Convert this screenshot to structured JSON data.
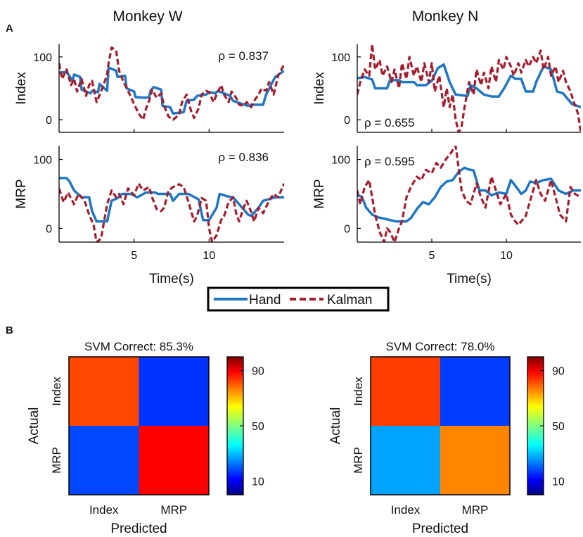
{
  "panels": {
    "a_label": "A",
    "b_label": "B"
  },
  "colors": {
    "hand": "#1f77c4",
    "kalman": "#a51d2d",
    "axis": "#000000"
  },
  "legend": {
    "hand_label": "Hand",
    "kalman_label": "Kalman"
  },
  "chart_data": [
    {
      "type": "line",
      "id": "w-index",
      "monkey_title": "Monkey W",
      "ylabel": "Index",
      "xlabel": "",
      "xlim": [
        0,
        15
      ],
      "ylim": [
        -20,
        120
      ],
      "yticks": [
        0,
        100
      ],
      "ytick_labels": [
        "0",
        "100"
      ],
      "xticks": [
        5,
        10
      ],
      "xtick_labels": [
        "",
        ""
      ],
      "annotation": "ρ = 0.837",
      "annotation_pos": "top-right",
      "series": [
        {
          "name": "Hand",
          "x": [
            0,
            0.5,
            0.9,
            1.0,
            1.4,
            1.5,
            2.1,
            2.2,
            2.6,
            2.7,
            3.2,
            3.3,
            3.8,
            3.9,
            4.4,
            4.5,
            5.0,
            5.1,
            5.7,
            6.0,
            6.1,
            6.3,
            6.8,
            6.9,
            7.4,
            7.6,
            8.3,
            8.5,
            9.0,
            9.2,
            9.8,
            10.0,
            10.4,
            10.6,
            11.0,
            11.4,
            11.6,
            12.6,
            12.8,
            13.6,
            13.8,
            14.4,
            15.0
          ],
          "y": [
            75,
            76,
            62,
            72,
            68,
            48,
            42,
            46,
            44,
            57,
            46,
            83,
            78,
            68,
            70,
            50,
            45,
            36,
            35,
            36,
            46,
            52,
            48,
            22,
            20,
            10,
            12,
            30,
            32,
            38,
            40,
            44,
            42,
            46,
            42,
            38,
            30,
            22,
            24,
            24,
            40,
            68,
            78
          ]
        },
        {
          "name": "Kalman",
          "x": [
            0,
            0.2,
            0.5,
            0.8,
            1.0,
            1.2,
            1.5,
            1.8,
            2.0,
            2.2,
            2.5,
            2.8,
            3.0,
            3.2,
            3.3,
            3.5,
            3.8,
            4.0,
            4.3,
            4.6,
            5.0,
            5.3,
            5.6,
            5.8,
            6.0,
            6.2,
            6.5,
            6.8,
            7.0,
            7.3,
            7.6,
            8.0,
            8.2,
            8.5,
            8.8,
            9.0,
            9.3,
            9.5,
            9.8,
            10.0,
            10.3,
            10.5,
            10.8,
            11.0,
            11.3,
            11.5,
            11.8,
            12.0,
            12.3,
            12.5,
            12.8,
            13.0,
            13.3,
            13.5,
            13.8,
            14.0,
            14.3,
            14.6,
            15.0
          ],
          "y": [
            90,
            65,
            80,
            55,
            65,
            45,
            65,
            38,
            55,
            62,
            28,
            45,
            58,
            72,
            90,
            115,
            110,
            78,
            60,
            46,
            25,
            10,
            0,
            18,
            30,
            48,
            35,
            42,
            22,
            5,
            0,
            8,
            28,
            40,
            14,
            3,
            18,
            40,
            46,
            44,
            28,
            40,
            55,
            40,
            28,
            45,
            35,
            24,
            22,
            28,
            20,
            30,
            40,
            50,
            46,
            60,
            40,
            70,
            88
          ]
        }
      ]
    },
    {
      "type": "line",
      "id": "w-mrp",
      "ylabel": "MRP",
      "xlabel": "Time(s)",
      "xlim": [
        0,
        15
      ],
      "ylim": [
        -20,
        120
      ],
      "yticks": [
        0,
        100
      ],
      "ytick_labels": [
        "0",
        "100"
      ],
      "xticks": [
        5,
        10
      ],
      "xtick_labels": [
        "5",
        "10"
      ],
      "annotation": "ρ = 0.836",
      "annotation_pos": "top-right",
      "series": [
        {
          "name": "Hand",
          "x": [
            0,
            0.5,
            0.7,
            1.0,
            1.5,
            2.0,
            2.2,
            2.5,
            3.0,
            3.2,
            3.5,
            3.9,
            4.2,
            4.8,
            5.2,
            5.8,
            6.4,
            6.6,
            7.4,
            7.6,
            8.0,
            8.6,
            8.8,
            9.3,
            9.6,
            10.0,
            10.5,
            10.7,
            11.3,
            11.6,
            12.6,
            12.8,
            13.3,
            13.6,
            14.4,
            15.0
          ],
          "y": [
            73,
            73,
            68,
            55,
            45,
            45,
            25,
            10,
            10,
            10,
            40,
            44,
            50,
            50,
            45,
            52,
            52,
            50,
            50,
            40,
            50,
            50,
            48,
            42,
            12,
            12,
            30,
            50,
            46,
            45,
            20,
            18,
            30,
            40,
            45,
            45
          ]
        },
        {
          "name": "Kalman",
          "x": [
            0,
            0.3,
            0.6,
            1.0,
            1.3,
            1.7,
            2.0,
            2.3,
            2.5,
            2.8,
            3.0,
            3.2,
            3.5,
            3.8,
            4.0,
            4.3,
            4.6,
            5.0,
            5.3,
            5.6,
            6.0,
            6.2,
            6.5,
            6.8,
            7.0,
            7.3,
            7.6,
            8.0,
            8.3,
            8.6,
            9.0,
            9.2,
            9.5,
            9.8,
            10.0,
            10.2,
            10.5,
            10.8,
            11.0,
            11.3,
            11.6,
            11.8,
            12.0,
            12.3,
            12.5,
            12.8,
            13.0,
            13.3,
            13.6,
            14.0,
            14.3,
            14.6,
            15.0
          ],
          "y": [
            58,
            38,
            52,
            35,
            50,
            40,
            20,
            5,
            -20,
            -15,
            10,
            35,
            55,
            45,
            50,
            35,
            58,
            48,
            65,
            55,
            60,
            45,
            28,
            25,
            30,
            55,
            60,
            64,
            60,
            40,
            10,
            18,
            44,
            40,
            0,
            -20,
            -10,
            12,
            18,
            38,
            45,
            22,
            10,
            30,
            40,
            24,
            10,
            30,
            22,
            40,
            50,
            45,
            65
          ]
        }
      ]
    },
    {
      "type": "line",
      "id": "n-index",
      "monkey_title": "Monkey N",
      "ylabel": "Index",
      "xlabel": "",
      "xlim": [
        0,
        15
      ],
      "ylim": [
        -20,
        120
      ],
      "yticks": [
        0,
        100
      ],
      "ytick_labels": [
        "0",
        "100"
      ],
      "xticks": [
        5,
        10
      ],
      "xtick_labels": [
        "",
        ""
      ],
      "annotation": "ρ = 0.655",
      "annotation_pos": "bottom-left",
      "series": [
        {
          "name": "Hand",
          "x": [
            0,
            0.5,
            1.0,
            1.2,
            2.0,
            2.2,
            2.8,
            3.0,
            3.8,
            4.0,
            4.6,
            5.0,
            5.4,
            5.8,
            6.2,
            6.6,
            7.4,
            7.6,
            8.0,
            8.5,
            9.0,
            9.5,
            9.9,
            10.3,
            10.6,
            11.0,
            11.3,
            11.8,
            12.0,
            12.5,
            13.0,
            13.4,
            13.8,
            14.4,
            15.0
          ],
          "y": [
            66,
            68,
            64,
            50,
            50,
            63,
            63,
            60,
            60,
            55,
            55,
            62,
            82,
            88,
            60,
            40,
            38,
            55,
            50,
            40,
            37,
            37,
            52,
            70,
            65,
            65,
            45,
            45,
            60,
            85,
            80,
            45,
            42,
            25,
            20
          ]
        },
        {
          "name": "Kalman",
          "x": [
            0,
            0.2,
            0.5,
            0.8,
            1.0,
            1.2,
            1.5,
            1.7,
            2.0,
            2.3,
            2.5,
            2.8,
            3.0,
            3.3,
            3.5,
            3.8,
            4.0,
            4.3,
            4.5,
            4.8,
            5.0,
            5.2,
            5.5,
            5.8,
            6.0,
            6.2,
            6.4,
            6.6,
            6.8,
            7.0,
            7.2,
            7.5,
            7.8,
            8.0,
            8.3,
            8.5,
            8.8,
            9.0,
            9.3,
            9.5,
            9.8,
            10.0,
            10.3,
            10.5,
            10.8,
            11.0,
            11.3,
            11.5,
            11.8,
            12.0,
            12.3,
            12.5,
            12.8,
            13.0,
            13.3,
            13.5,
            13.8,
            14.0,
            14.3,
            14.5,
            14.8,
            15.0
          ],
          "y": [
            40,
            60,
            80,
            70,
            120,
            80,
            95,
            70,
            85,
            60,
            80,
            50,
            90,
            65,
            100,
            70,
            85,
            60,
            90,
            60,
            90,
            45,
            70,
            20,
            50,
            20,
            40,
            0,
            -20,
            -10,
            20,
            60,
            40,
            80,
            55,
            75,
            50,
            85,
            60,
            95,
            80,
            100,
            85,
            70,
            90,
            75,
            95,
            85,
            100,
            90,
            110,
            80,
            100,
            70,
            85,
            60,
            78,
            60,
            45,
            30,
            10,
            -20
          ]
        }
      ]
    },
    {
      "type": "line",
      "id": "n-mrp",
      "ylabel": "MRP",
      "xlabel": "Time(s)",
      "xlim": [
        0,
        15
      ],
      "ylim": [
        -20,
        120
      ],
      "yticks": [
        0,
        100
      ],
      "ytick_labels": [
        "0",
        "100"
      ],
      "xticks": [
        5,
        10
      ],
      "xtick_labels": [
        "5",
        "10"
      ],
      "annotation": "ρ = 0.595",
      "annotation_pos": "top-left",
      "series": [
        {
          "name": "Hand",
          "x": [
            0,
            0.3,
            0.6,
            1.0,
            1.4,
            1.8,
            2.2,
            2.6,
            3.0,
            3.3,
            3.6,
            4.0,
            4.4,
            4.8,
            5.2,
            5.6,
            6.0,
            6.4,
            6.8,
            7.2,
            7.4,
            7.8,
            8.2,
            8.6,
            9.0,
            9.5,
            10.0,
            10.3,
            10.6,
            11.0,
            11.3,
            11.6,
            12.0,
            12.5,
            13.0,
            13.5,
            14.0,
            14.5,
            15.0
          ],
          "y": [
            48,
            46,
            30,
            20,
            16,
            14,
            12,
            10,
            10,
            10,
            15,
            28,
            38,
            35,
            45,
            60,
            68,
            70,
            82,
            88,
            86,
            84,
            55,
            55,
            48,
            52,
            50,
            70,
            62,
            50,
            55,
            68,
            66,
            70,
            72,
            55,
            50,
            55,
            55
          ]
        },
        {
          "name": "Kalman",
          "x": [
            0,
            0.2,
            0.5,
            0.8,
            1.0,
            1.2,
            1.5,
            1.8,
            2.0,
            2.2,
            2.5,
            2.8,
            3.0,
            3.3,
            3.6,
            4.0,
            4.3,
            4.6,
            5.0,
            5.3,
            5.6,
            6.0,
            6.3,
            6.6,
            7.0,
            7.3,
            7.6,
            8.0,
            8.3,
            8.6,
            9.0,
            9.3,
            9.6,
            10.0,
            10.3,
            10.6,
            10.8,
            11.0,
            11.3,
            11.6,
            12.0,
            12.3,
            12.6,
            13.0,
            13.3,
            13.6,
            14.0,
            14.3,
            14.6,
            15.0
          ],
          "y": [
            55,
            35,
            60,
            70,
            45,
            20,
            -5,
            -20,
            0,
            -5,
            -20,
            0,
            10,
            45,
            60,
            75,
            70,
            85,
            80,
            95,
            88,
            102,
            110,
            120,
            55,
            40,
            35,
            65,
            45,
            30,
            75,
            55,
            35,
            50,
            20,
            10,
            5,
            10,
            18,
            40,
            70,
            50,
            40,
            70,
            45,
            20,
            10,
            60,
            50,
            45
          ]
        }
      ]
    },
    {
      "type": "heatmap",
      "id": "w-confusion",
      "title": "SVM Correct: 85.3%",
      "xlabel": "Predicted",
      "ylabel": "Actual",
      "x_categories": [
        "Index",
        "MRP"
      ],
      "y_categories": [
        "Index",
        "MRP"
      ],
      "values": [
        [
          82,
          16
        ],
        [
          18,
          89
        ]
      ],
      "clim": [
        0,
        100
      ],
      "colorbar_ticks": [
        10,
        50,
        90
      ],
      "colorbar_tick_labels": [
        "10",
        "50",
        "90"
      ]
    },
    {
      "type": "heatmap",
      "id": "n-confusion",
      "title": "SVM Correct: 78.0%",
      "xlabel": "Predicted",
      "ylabel": "Actual",
      "x_categories": [
        "Index",
        "MRP"
      ],
      "y_categories": [
        "Index",
        "MRP"
      ],
      "values": [
        [
          83,
          17
        ],
        [
          27,
          76
        ]
      ],
      "clim": [
        0,
        100
      ],
      "colorbar_ticks": [
        10,
        50,
        90
      ],
      "colorbar_tick_labels": [
        "10",
        "50",
        "90"
      ]
    }
  ]
}
